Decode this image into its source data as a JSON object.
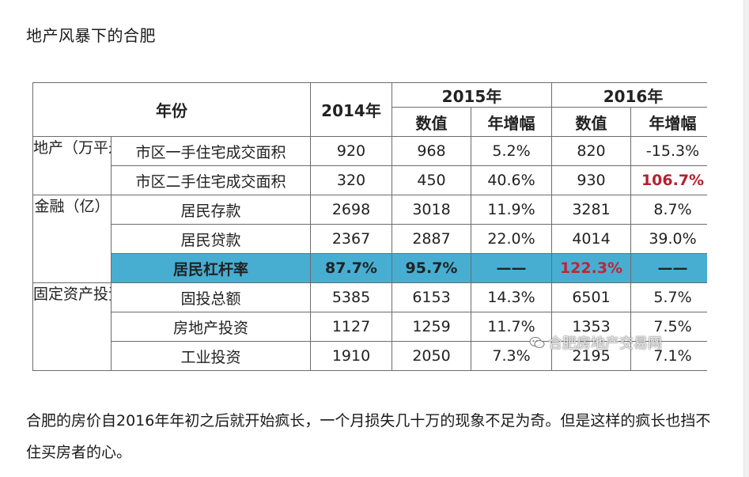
{
  "article": {
    "heading": "地产风暴下的合肥",
    "paragraph": "合肥的房价自2016年年初之后就开始疯长，一个月损失几十万的现象不足为奇。但是这样的疯长也挡不住买房者的心。"
  },
  "table": {
    "header": {
      "year_label": "年份",
      "y2014": "2014年",
      "y2015": "2015年",
      "y2016": "2016年",
      "value_label": "数值",
      "growth_label": "年增幅"
    },
    "groups": {
      "realestate": "地产（万平米）",
      "finance": "金融（亿）",
      "investment": "固定资产投资（亿）"
    },
    "rows": [
      {
        "item": "市区一手住宅成交面积",
        "v2014": "920",
        "v2015": "968",
        "g2015": "5.2%",
        "v2016": "820",
        "g2016": "-15.3%"
      },
      {
        "item": "市区二手住宅成交面积",
        "v2014": "320",
        "v2015": "450",
        "g2015": "40.6%",
        "v2016": "930",
        "g2016": "106.7%"
      },
      {
        "item": "居民存款",
        "v2014": "2698",
        "v2015": "3018",
        "g2015": "11.9%",
        "v2016": "3281",
        "g2016": "8.7%"
      },
      {
        "item": "居民贷款",
        "v2014": "2367",
        "v2015": "2887",
        "g2015": "22.0%",
        "v2016": "4014",
        "g2016": "39.0%"
      },
      {
        "item": "居民杠杆率",
        "v2014": "87.7%",
        "v2015": "95.7%",
        "g2015": "——",
        "v2016": "122.3%",
        "g2016": "——"
      },
      {
        "item": "固投总额",
        "v2014": "5385",
        "v2015": "6153",
        "g2015": "14.3%",
        "v2016": "6501",
        "g2016": "5.7%"
      },
      {
        "item": "房地产投资",
        "v2014": "1127",
        "v2015": "1259",
        "g2015": "11.7%",
        "v2016": "1353",
        "g2016": "7.5%"
      },
      {
        "item": "工业投资",
        "v2014": "1910",
        "v2015": "2050",
        "g2015": "7.3%",
        "v2016": "2195",
        "g2016": "7.1%"
      }
    ],
    "highlight_color": "#47aed2",
    "emphasis_color": "#b5202f"
  },
  "watermark": {
    "icon": "wechat-icon",
    "text": "合肥房地产交易网"
  }
}
